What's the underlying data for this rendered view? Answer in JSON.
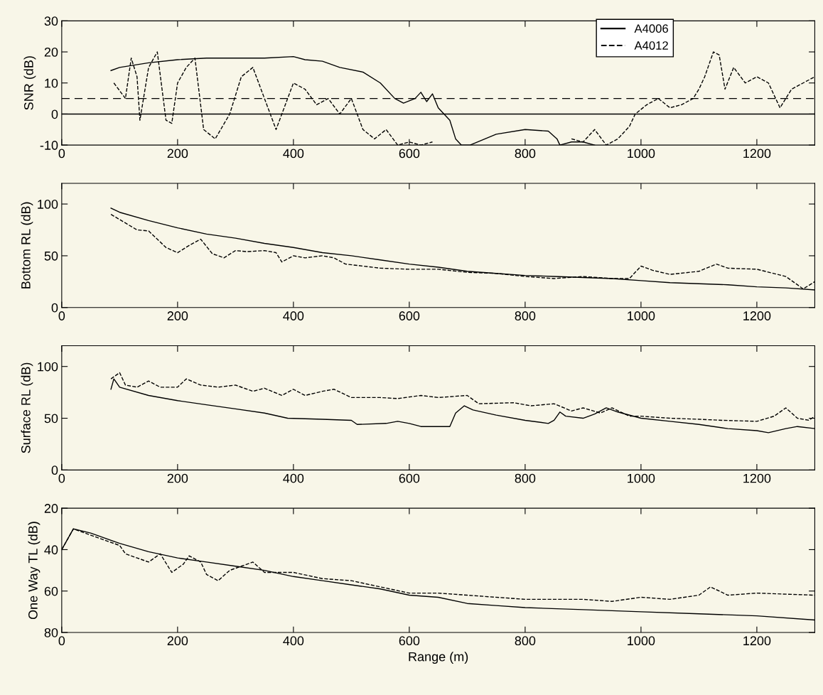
{
  "chart_data": [
    {
      "type": "line",
      "ylabel": "SNR (dB)",
      "xlim": [
        0,
        1300
      ],
      "xticks": [
        0,
        200,
        400,
        600,
        800,
        1000,
        1200
      ],
      "ylim": [
        -10,
        30
      ],
      "yticks": [
        -10,
        0,
        10,
        20,
        30
      ],
      "grid": false,
      "legend": "top right",
      "ref_lines": [
        {
          "axis": "y",
          "value": 5,
          "color": "#000000",
          "line_style": "dashed"
        },
        {
          "axis": "y",
          "value": 0,
          "color": "#000000",
          "line_style": "solid"
        }
      ],
      "series": [
        {
          "name": "A4006",
          "color": "#000000",
          "line_style": "solid",
          "x": [
            85,
            100,
            150,
            200,
            250,
            300,
            350,
            400,
            420,
            450,
            480,
            520,
            550,
            575,
            590,
            610,
            620,
            630,
            640,
            650,
            660,
            670,
            680,
            690,
            705,
            750,
            800,
            840,
            855,
            860,
            880,
            900,
            920
          ],
          "values": [
            14,
            15,
            16.5,
            17.5,
            18,
            18,
            18,
            18.5,
            17.5,
            17,
            15,
            13.5,
            10,
            5,
            3.5,
            5,
            7,
            4,
            6.5,
            2,
            0,
            -2,
            -8,
            -10,
            -10,
            -6.5,
            -5,
            -5.5,
            -8,
            -10,
            -9,
            -9,
            -10
          ]
        },
        {
          "name": "A4012",
          "color": "#000000",
          "line_style": "dashed",
          "x": [
            90,
            110,
            120,
            130,
            135,
            150,
            165,
            180,
            190,
            200,
            215,
            230,
            245,
            265,
            290,
            310,
            330,
            350,
            370,
            390,
            400,
            420,
            440,
            460,
            480,
            500,
            520,
            540,
            560,
            580,
            600,
            620,
            640,
            650,
            880,
            900,
            920,
            940,
            960,
            980,
            990,
            1010,
            1030,
            1050,
            1070,
            1090,
            1100,
            1110,
            1125,
            1135,
            1145,
            1160,
            1180,
            1200,
            1220,
            1240,
            1260,
            1280,
            1300
          ],
          "values": [
            10,
            5,
            18,
            12,
            -2,
            15,
            20,
            -2,
            -3,
            10,
            15,
            18,
            -5,
            -8,
            0,
            12,
            15,
            5,
            -5,
            5,
            10,
            8,
            3,
            5,
            0,
            5,
            -5,
            -8,
            -5,
            -10,
            -9,
            -10,
            -9,
            null,
            -8,
            -9,
            -5,
            -10,
            -8,
            -4,
            0,
            3,
            5,
            2,
            3,
            5,
            8,
            12,
            20,
            19,
            8,
            15,
            10,
            12,
            10,
            2,
            8,
            10,
            12
          ]
        }
      ]
    },
    {
      "type": "line",
      "ylabel": "Bottom RL (dB)",
      "xlim": [
        0,
        1300
      ],
      "xticks": [
        0,
        200,
        400,
        600,
        800,
        1000,
        1200
      ],
      "ylim": [
        0,
        120
      ],
      "yticks": [
        0,
        50,
        100
      ],
      "grid": false,
      "series": [
        {
          "color": "#000000",
          "line_style": "solid",
          "x": [
            85,
            100,
            150,
            200,
            250,
            300,
            350,
            400,
            450,
            500,
            550,
            600,
            650,
            700,
            750,
            800,
            850,
            900,
            950,
            1000,
            1050,
            1100,
            1150,
            1200,
            1250,
            1300
          ],
          "values": [
            96,
            92,
            84,
            77,
            71,
            67,
            62,
            58,
            53,
            50,
            46,
            42,
            39,
            35,
            33,
            31,
            30,
            29,
            28,
            26,
            24,
            23,
            22,
            20,
            19,
            17
          ]
        },
        {
          "color": "#000000",
          "line_style": "dashed",
          "x": [
            85,
            100,
            130,
            150,
            180,
            200,
            220,
            240,
            260,
            280,
            300,
            320,
            350,
            370,
            380,
            400,
            420,
            450,
            470,
            490,
            550,
            600,
            650,
            700,
            750,
            800,
            850,
            900,
            950,
            980,
            1000,
            1020,
            1050,
            1100,
            1130,
            1150,
            1200,
            1250,
            1280,
            1300
          ],
          "values": [
            90,
            85,
            75,
            74,
            58,
            53,
            60,
            66,
            52,
            48,
            55,
            54,
            55,
            53,
            44,
            50,
            48,
            50,
            48,
            42,
            38,
            37,
            37,
            34,
            33,
            30,
            28,
            30,
            28,
            28,
            40,
            36,
            32,
            35,
            42,
            38,
            37,
            30,
            18,
            25
          ]
        }
      ]
    },
    {
      "type": "line",
      "ylabel": "Surface RL (dB)",
      "xlim": [
        0,
        1300
      ],
      "xticks": [
        0,
        200,
        400,
        600,
        800,
        1000,
        1200
      ],
      "ylim": [
        0,
        120
      ],
      "yticks": [
        0,
        50,
        100
      ],
      "grid": false,
      "series": [
        {
          "color": "#000000",
          "line_style": "solid",
          "x": [
            85,
            90,
            100,
            150,
            200,
            250,
            300,
            350,
            390,
            450,
            500,
            510,
            560,
            580,
            600,
            620,
            670,
            680,
            695,
            710,
            750,
            800,
            840,
            850,
            860,
            870,
            900,
            920,
            940,
            960,
            1000,
            1050,
            1100,
            1150,
            1200,
            1220,
            1250,
            1270,
            1300
          ],
          "values": [
            78,
            88,
            80,
            72,
            67,
            63,
            59,
            55,
            50,
            49,
            48,
            44,
            45,
            47,
            45,
            42,
            42,
            55,
            62,
            58,
            53,
            48,
            45,
            48,
            56,
            52,
            50,
            54,
            60,
            56,
            50,
            47,
            44,
            40,
            38,
            36,
            40,
            42,
            40
          ]
        },
        {
          "color": "#000000",
          "line_style": "dashed",
          "x": [
            85,
            100,
            110,
            130,
            150,
            170,
            200,
            215,
            240,
            270,
            300,
            330,
            350,
            380,
            400,
            420,
            450,
            470,
            500,
            550,
            580,
            620,
            650,
            700,
            720,
            780,
            810,
            850,
            880,
            900,
            930,
            950,
            980,
            1000,
            1050,
            1100,
            1140,
            1200,
            1230,
            1250,
            1270,
            1290,
            1300
          ],
          "values": [
            88,
            94,
            82,
            80,
            86,
            80,
            80,
            88,
            82,
            80,
            82,
            76,
            79,
            72,
            78,
            72,
            76,
            78,
            70,
            70,
            69,
            72,
            70,
            72,
            64,
            65,
            62,
            64,
            57,
            60,
            55,
            60,
            52,
            52,
            50,
            49,
            48,
            47,
            52,
            60,
            50,
            48,
            52
          ]
        }
      ]
    },
    {
      "type": "line",
      "ylabel": "One Way TL (dB)",
      "xlabel": "Range (m)",
      "xlim": [
        0,
        1300
      ],
      "xticks": [
        0,
        200,
        400,
        600,
        800,
        1000,
        1200
      ],
      "ylim": [
        80,
        20
      ],
      "yticks": [
        20,
        40,
        60,
        80
      ],
      "grid": false,
      "series": [
        {
          "color": "#000000",
          "line_style": "solid",
          "x": [
            0,
            10,
            20,
            50,
            100,
            150,
            200,
            250,
            300,
            350,
            400,
            450,
            500,
            550,
            600,
            650,
            700,
            750,
            800,
            900,
            1000,
            1100,
            1200,
            1300
          ],
          "values": [
            40,
            35,
            30,
            32,
            37,
            41,
            44,
            46,
            48,
            50,
            53,
            55,
            57,
            59,
            62,
            63,
            66,
            67,
            68,
            69,
            70,
            71,
            72,
            74
          ]
        },
        {
          "color": "#000000",
          "line_style": "dashed",
          "x": [
            0,
            20,
            50,
            100,
            110,
            130,
            150,
            170,
            190,
            210,
            220,
            240,
            250,
            270,
            290,
            310,
            330,
            350,
            400,
            450,
            500,
            550,
            600,
            650,
            700,
            800,
            900,
            950,
            1000,
            1050,
            1100,
            1120,
            1150,
            1200,
            1300
          ],
          "values": [
            40,
            30,
            33,
            38,
            42,
            44,
            46,
            42,
            51,
            47,
            43,
            46,
            52,
            55,
            50,
            48,
            46,
            51,
            51,
            54,
            55,
            58,
            61,
            61,
            62,
            64,
            64,
            65,
            63,
            64,
            62,
            58,
            62,
            61,
            62
          ]
        }
      ]
    }
  ]
}
